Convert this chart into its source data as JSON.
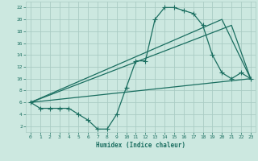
{
  "title": "",
  "xlabel": "Humidex (Indice chaleur)",
  "background_color": "#cce8e0",
  "grid_color": "#aaccc4",
  "line_color": "#1a6e60",
  "xlim": [
    -0.5,
    23.5
  ],
  "ylim": [
    1,
    23
  ],
  "xticks": [
    0,
    1,
    2,
    3,
    4,
    5,
    6,
    7,
    8,
    9,
    10,
    11,
    12,
    13,
    14,
    15,
    16,
    17,
    18,
    19,
    20,
    21,
    22,
    23
  ],
  "yticks": [
    2,
    4,
    6,
    8,
    10,
    12,
    14,
    16,
    18,
    20,
    22
  ],
  "line1_x": [
    0,
    1,
    2,
    3,
    4,
    5,
    6,
    7,
    8,
    9,
    10,
    11,
    12,
    13,
    14,
    15,
    16,
    17,
    18,
    19,
    20,
    21,
    22,
    23
  ],
  "line1_y": [
    6,
    5,
    5,
    5,
    5,
    4,
    3,
    1.5,
    1.5,
    4,
    8.5,
    13,
    13,
    20,
    22,
    22,
    21.5,
    21,
    19,
    14,
    11,
    10,
    11,
    10
  ],
  "line2_x": [
    0,
    23
  ],
  "line2_y": [
    6,
    10
  ],
  "line3_x": [
    0,
    21,
    23
  ],
  "line3_y": [
    6,
    19,
    10
  ],
  "line4_x": [
    0,
    20,
    23
  ],
  "line4_y": [
    6,
    20,
    10
  ],
  "linewidth": 0.9,
  "markersize": 4
}
